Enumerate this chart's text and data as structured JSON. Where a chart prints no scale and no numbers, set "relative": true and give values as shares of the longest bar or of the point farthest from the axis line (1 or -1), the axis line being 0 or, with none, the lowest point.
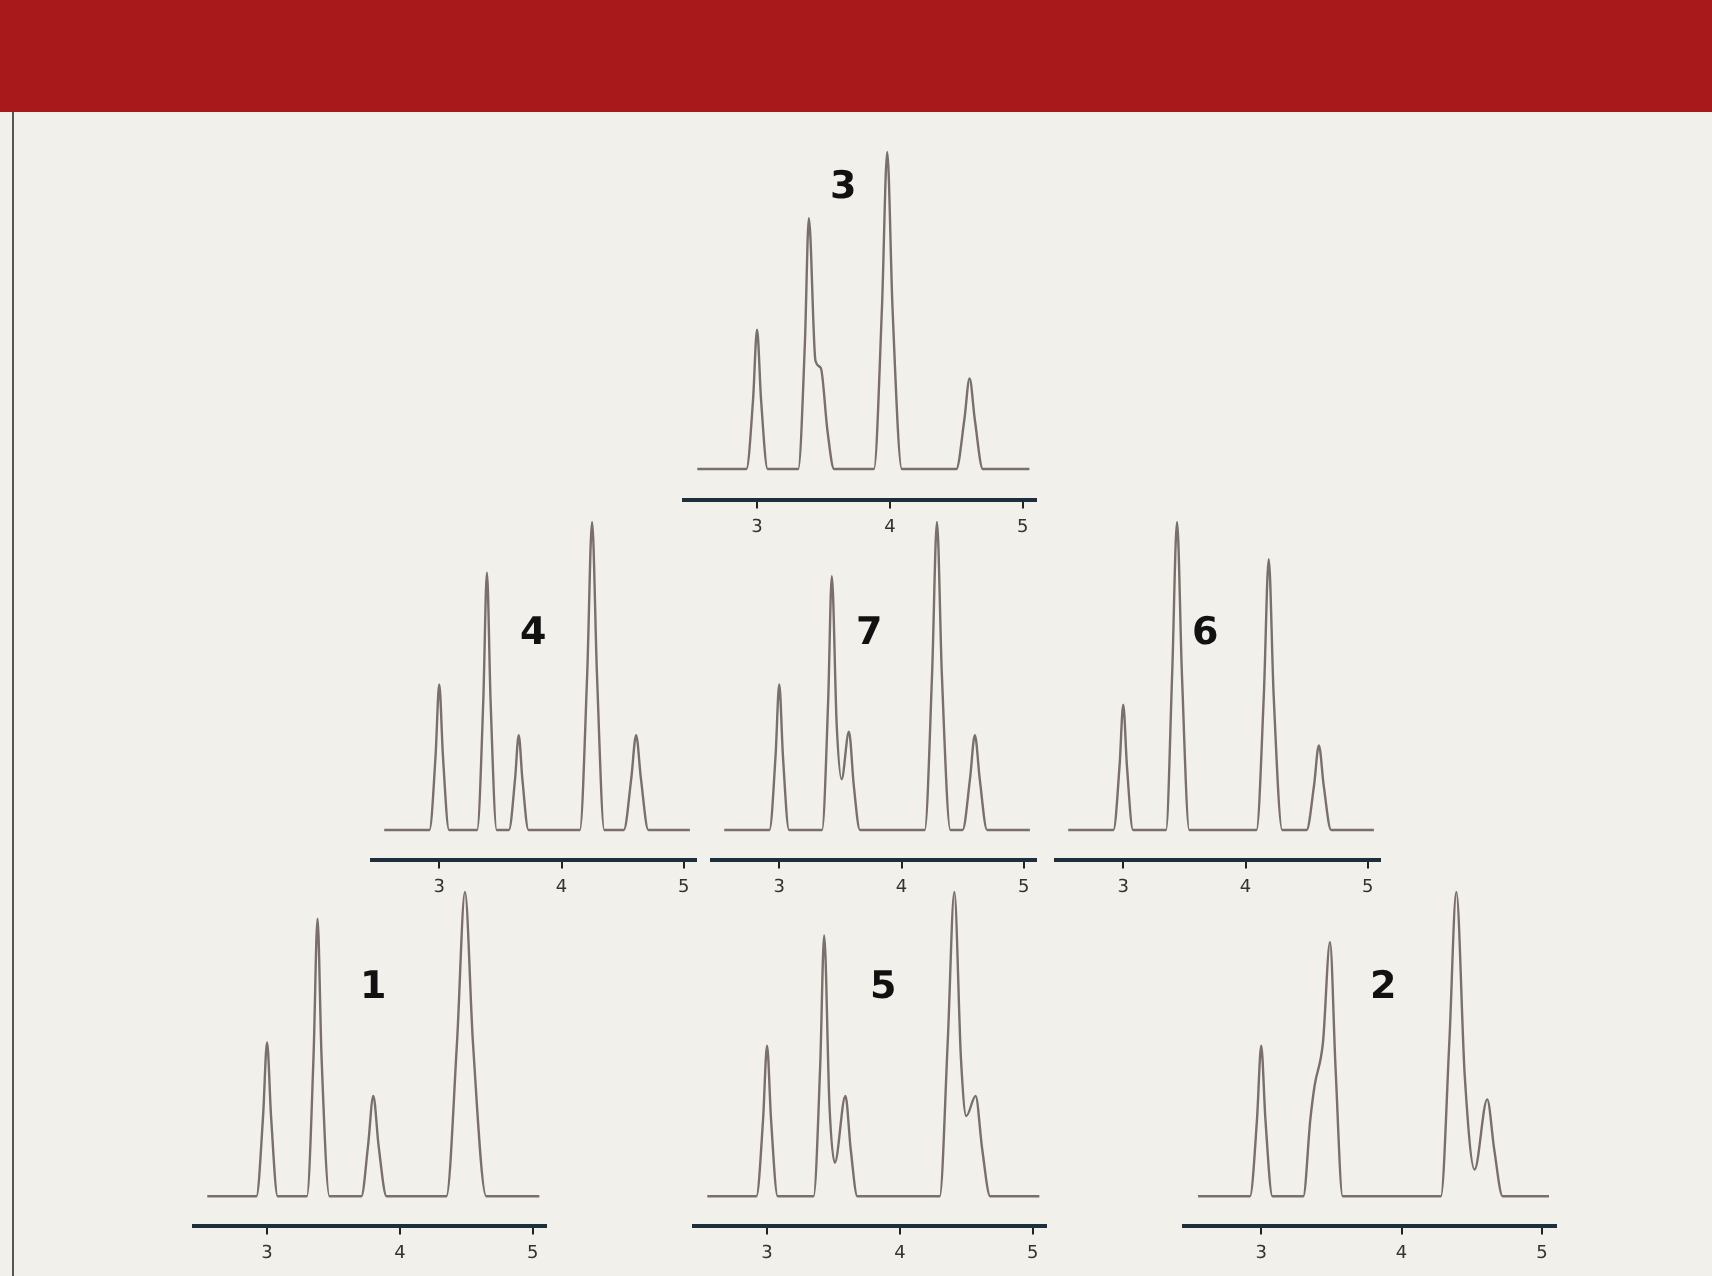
{
  "chart_data": [
    {
      "type": "line",
      "title": "3",
      "relative": true,
      "xlim": [
        2.45,
        5.1
      ],
      "xticks": [
        3,
        4,
        5
      ],
      "series": [
        {
          "color": "#7a6f6a",
          "x": [
            2.55,
            2.92,
            2.97,
            3.0,
            3.03,
            3.08,
            3.31,
            3.36,
            3.39,
            3.44,
            3.48,
            3.53,
            3.58,
            3.88,
            3.94,
            3.98,
            4.02,
            4.09,
            4.5,
            4.56,
            4.6,
            4.64,
            4.7,
            5.05
          ],
          "values": [
            0.09,
            0.09,
            0.29,
            0.49,
            0.29,
            0.09,
            0.09,
            0.45,
            0.81,
            0.4,
            0.38,
            0.2,
            0.09,
            0.09,
            0.55,
            1,
            0.55,
            0.09,
            0.09,
            0.23,
            0.35,
            0.23,
            0.09,
            0.09
          ]
        }
      ]
    },
    {
      "type": "line",
      "title": "4",
      "relative": true,
      "xlim": [
        2.45,
        5.1
      ],
      "xticks": [
        3,
        4,
        5
      ],
      "series": [
        {
          "color": "#7a6f6a",
          "x": [
            2.55,
            2.92,
            2.97,
            3.0,
            3.03,
            3.08,
            3.31,
            3.36,
            3.39,
            3.42,
            3.47,
            3.57,
            3.62,
            3.65,
            3.68,
            3.73,
            4.15,
            4.21,
            4.25,
            4.29,
            4.35,
            4.51,
            4.57,
            4.61,
            4.65,
            4.71,
            5.05
          ],
          "values": [
            0.09,
            0.09,
            0.31,
            0.52,
            0.31,
            0.09,
            0.09,
            0.47,
            0.85,
            0.47,
            0.09,
            0.09,
            0.24,
            0.37,
            0.24,
            0.09,
            0.09,
            0.55,
            1,
            0.55,
            0.09,
            0.09,
            0.24,
            0.37,
            0.24,
            0.09,
            0.09
          ]
        }
      ]
    },
    {
      "type": "line",
      "title": "7",
      "relative": true,
      "xlim": [
        2.45,
        5.1
      ],
      "xticks": [
        3,
        4,
        5
      ],
      "series": [
        {
          "color": "#7a6f6a",
          "x": [
            2.55,
            2.92,
            2.97,
            3.0,
            3.03,
            3.08,
            3.35,
            3.4,
            3.43,
            3.47,
            3.51,
            3.57,
            3.61,
            3.66,
            4.19,
            4.25,
            4.29,
            4.33,
            4.4,
            4.5,
            4.56,
            4.6,
            4.64,
            4.7,
            5.05
          ],
          "values": [
            0.09,
            0.09,
            0.31,
            0.52,
            0.31,
            0.09,
            0.09,
            0.47,
            0.84,
            0.4,
            0.24,
            0.38,
            0.22,
            0.09,
            0.09,
            0.55,
            1,
            0.55,
            0.09,
            0.09,
            0.24,
            0.37,
            0.24,
            0.09,
            0.09
          ]
        }
      ]
    },
    {
      "type": "line",
      "title": "6",
      "relative": true,
      "xlim": [
        2.45,
        5.1
      ],
      "xticks": [
        3,
        4,
        5
      ],
      "series": [
        {
          "color": "#7a6f6a",
          "x": [
            2.55,
            2.92,
            2.97,
            3.0,
            3.03,
            3.08,
            3.35,
            3.4,
            3.44,
            3.48,
            3.54,
            4.09,
            4.15,
            4.19,
            4.23,
            4.3,
            4.5,
            4.56,
            4.6,
            4.64,
            4.7,
            5.05
          ],
          "values": [
            0.09,
            0.09,
            0.28,
            0.46,
            0.28,
            0.09,
            0.09,
            0.55,
            1,
            0.55,
            0.09,
            0.09,
            0.49,
            0.89,
            0.49,
            0.09,
            0.09,
            0.22,
            0.34,
            0.22,
            0.09,
            0.09
          ]
        }
      ]
    },
    {
      "type": "line",
      "title": "1",
      "relative": true,
      "xlim": [
        2.45,
        5.1
      ],
      "xticks": [
        3,
        4,
        5
      ],
      "series": [
        {
          "color": "#7a6f6a",
          "x": [
            2.55,
            2.92,
            2.97,
            3.0,
            3.03,
            3.08,
            3.3,
            3.35,
            3.38,
            3.41,
            3.47,
            3.71,
            3.76,
            3.8,
            3.84,
            3.9,
            4.35,
            4.43,
            4.49,
            4.55,
            4.65,
            5.05
          ],
          "values": [
            0.09,
            0.09,
            0.33,
            0.55,
            0.33,
            0.09,
            0.09,
            0.51,
            0.92,
            0.51,
            0.09,
            0.09,
            0.24,
            0.39,
            0.24,
            0.09,
            0.09,
            0.55,
            1,
            0.55,
            0.09,
            0.09
          ]
        }
      ]
    },
    {
      "type": "line",
      "title": "5",
      "relative": true,
      "xlim": [
        2.45,
        5.1
      ],
      "xticks": [
        3,
        4,
        5
      ],
      "series": [
        {
          "color": "#7a6f6a",
          "x": [
            2.55,
            2.92,
            2.97,
            3.0,
            3.03,
            3.08,
            3.35,
            3.4,
            3.43,
            3.47,
            3.51,
            3.59,
            3.63,
            3.68,
            4.3,
            4.36,
            4.41,
            4.46,
            4.5,
            4.57,
            4.62,
            4.68,
            5.05
          ],
          "values": [
            0.09,
            0.09,
            0.32,
            0.54,
            0.32,
            0.09,
            0.09,
            0.48,
            0.87,
            0.36,
            0.19,
            0.39,
            0.23,
            0.09,
            0.09,
            0.55,
            1,
            0.5,
            0.33,
            0.39,
            0.23,
            0.09,
            0.09
          ]
        }
      ]
    },
    {
      "type": "line",
      "title": "2",
      "relative": true,
      "xlim": [
        2.45,
        5.1
      ],
      "xticks": [
        3,
        4,
        5
      ],
      "series": [
        {
          "color": "#7a6f6a",
          "x": [
            2.55,
            2.92,
            2.97,
            3.0,
            3.03,
            3.08,
            3.3,
            3.35,
            3.38,
            3.44,
            3.49,
            3.53,
            3.58,
            4.28,
            4.34,
            4.39,
            4.45,
            4.52,
            4.61,
            4.66,
            4.72,
            5.05
          ],
          "values": [
            0.09,
            0.09,
            0.32,
            0.54,
            0.32,
            0.09,
            0.09,
            0.32,
            0.42,
            0.55,
            0.85,
            0.47,
            0.09,
            0.09,
            0.55,
            1,
            0.45,
            0.17,
            0.38,
            0.23,
            0.09,
            0.09
          ]
        }
      ]
    }
  ]
}
